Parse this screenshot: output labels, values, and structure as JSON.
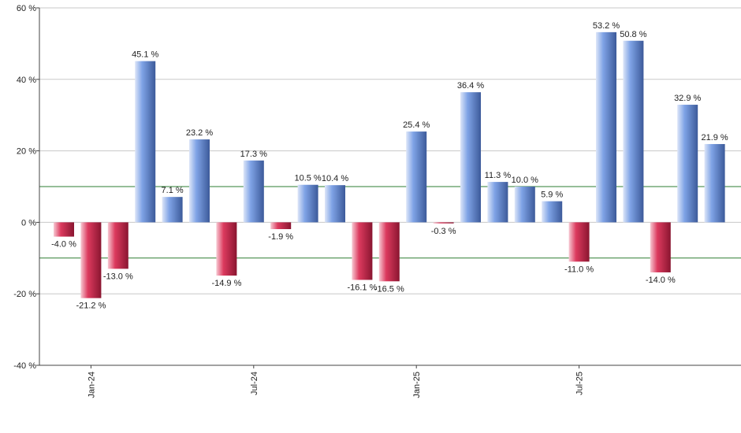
{
  "chart_data": {
    "type": "bar",
    "categories": [
      null,
      "Jan-24",
      null,
      null,
      null,
      null,
      null,
      "Jul-24",
      null,
      null,
      null,
      null,
      null,
      "Jan-25",
      null,
      null,
      null,
      null,
      null,
      "Jul-25",
      null,
      null,
      null,
      null,
      null
    ],
    "values": [
      -4.0,
      -21.2,
      -13.0,
      45.1,
      7.1,
      23.2,
      -14.9,
      17.3,
      -1.9,
      10.5,
      10.4,
      -16.1,
      -16.5,
      25.4,
      -0.3,
      36.4,
      11.3,
      10.0,
      5.9,
      -11.0,
      53.2,
      50.8,
      -14.0,
      32.9,
      21.9
    ],
    "value_labels": [
      "-4.0 %",
      "-21.2 %",
      "-13.0 %",
      "45.1 %",
      "7.1 %",
      "23.2 %",
      "-14.9 %",
      "17.3 %",
      "-1.9 %",
      "10.5 %",
      "10.4 %",
      "-16.1 %",
      "-16.5 %",
      "25.4 %",
      "-0.3 %",
      "36.4 %",
      "11.3 %",
      "10.0 %",
      "5.9 %",
      "-11.0 %",
      "53.2 %",
      "50.8 %",
      "-14.0 %",
      "32.9 %",
      "21.9 %"
    ],
    "positive_color": "#7fa3e6",
    "negative_color": "#dc3a5e",
    "ylim": [
      -40,
      60
    ],
    "yticks": [
      {
        "value": -40,
        "label": "-40 %"
      },
      {
        "value": -20,
        "label": "-20 %"
      },
      {
        "value": 0,
        "label": "0 %"
      },
      {
        "value": 20,
        "label": "20 %"
      },
      {
        "value": 40,
        "label": "40 %"
      },
      {
        "value": 60,
        "label": "60 %"
      }
    ],
    "grid": true,
    "reference_lines": [
      10,
      -10
    ],
    "reference_color": "#2e7d32"
  }
}
